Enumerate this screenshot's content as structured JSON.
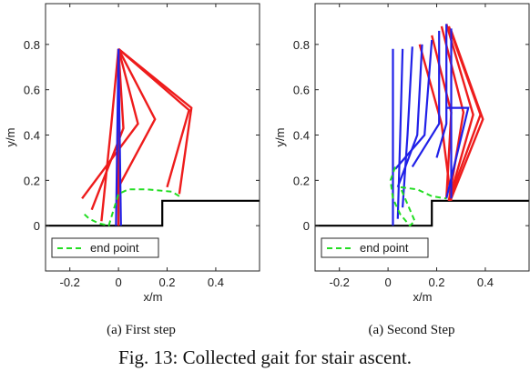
{
  "colors": {
    "red": "#ee1c1c",
    "blue": "#2020e8",
    "green": "#22dd22",
    "stair": "#000000"
  },
  "figure_caption": "Fig. 13: Collected gait for stair ascent.",
  "chart_data": [
    {
      "type": "line",
      "caption": "(a) First step",
      "xlabel": "x/m",
      "ylabel": "y/m",
      "xlim": [
        -0.3,
        0.58
      ],
      "ylim": [
        -0.2,
        0.98
      ],
      "xticks": [
        -0.2,
        0,
        0.2,
        0.4
      ],
      "xtick_labels": [
        "-0.2",
        "0",
        "0.2",
        "0.4"
      ],
      "yticks": [
        0,
        0.2,
        0.4,
        0.6,
        0.8
      ],
      "ytick_labels": [
        "0",
        "0.2",
        "0.4",
        "0.6",
        "0.8"
      ],
      "legend": {
        "label": "end point",
        "placement": "bottom-left"
      },
      "stair": [
        [
          -0.3,
          0
        ],
        [
          0.18,
          0
        ],
        [
          0.18,
          0.11
        ],
        [
          0.58,
          0.11
        ]
      ],
      "hip": [
        0,
        0.78
      ],
      "red_legs": [
        [
          [
            0.0,
            0.78
          ],
          [
            0.0,
            0.45
          ],
          [
            0.0,
            0.0
          ]
        ],
        [
          [
            0.0,
            0.78
          ],
          [
            -0.03,
            0.44
          ],
          [
            -0.07,
            0.02
          ]
        ],
        [
          [
            0.0,
            0.78
          ],
          [
            0.02,
            0.43
          ],
          [
            -0.11,
            0.07
          ]
        ],
        [
          [
            0.0,
            0.78
          ],
          [
            0.08,
            0.45
          ],
          [
            -0.15,
            0.12
          ]
        ],
        [
          [
            0.0,
            0.78
          ],
          [
            0.15,
            0.47
          ],
          [
            0.0,
            0.17
          ]
        ],
        [
          [
            0.0,
            0.78
          ],
          [
            0.29,
            0.51
          ],
          [
            0.2,
            0.17
          ]
        ],
        [
          [
            0.0,
            0.78
          ],
          [
            0.3,
            0.52
          ],
          [
            0.25,
            0.14
          ]
        ]
      ],
      "blue_legs": [
        [
          [
            0.0,
            0.78
          ],
          [
            -0.005,
            0.4
          ],
          [
            -0.01,
            0.0
          ]
        ],
        [
          [
            0.0,
            0.78
          ],
          [
            0.005,
            0.4
          ],
          [
            0.01,
            0.0
          ]
        ]
      ],
      "endpoint_path": [
        [
          -0.14,
          0.05
        ],
        [
          -0.12,
          0.03
        ],
        [
          -0.08,
          0.01
        ],
        [
          -0.04,
          0.0
        ],
        [
          0.0,
          0.14
        ],
        [
          0.04,
          0.16
        ],
        [
          0.12,
          0.16
        ],
        [
          0.22,
          0.15
        ],
        [
          0.25,
          0.13
        ]
      ]
    },
    {
      "type": "line",
      "caption": "(a) Second Step",
      "xlabel": "x/m",
      "ylabel": "y/m",
      "xlim": [
        -0.3,
        0.58
      ],
      "ylim": [
        -0.2,
        0.98
      ],
      "xticks": [
        -0.2,
        0,
        0.2,
        0.4
      ],
      "xtick_labels": [
        "-0.2",
        "0",
        "0.2",
        "0.4"
      ],
      "yticks": [
        0,
        0.2,
        0.4,
        0.6,
        0.8
      ],
      "ytick_labels": [
        "0",
        "0.2",
        "0.4",
        "0.6",
        "0.8"
      ],
      "legend": {
        "label": "end point",
        "placement": "bottom-left"
      },
      "stair": [
        [
          -0.3,
          0
        ],
        [
          0.18,
          0
        ],
        [
          0.18,
          0.11
        ],
        [
          0.58,
          0.11
        ]
      ],
      "red_legs": [
        [
          [
            0.13,
            0.8
          ],
          [
            0.22,
            0.45
          ],
          [
            0.26,
            0.11
          ]
        ],
        [
          [
            0.18,
            0.84
          ],
          [
            0.26,
            0.5
          ],
          [
            0.24,
            0.12
          ]
        ],
        [
          [
            0.22,
            0.88
          ],
          [
            0.31,
            0.5
          ],
          [
            0.25,
            0.11
          ]
        ],
        [
          [
            0.24,
            0.89
          ],
          [
            0.35,
            0.49
          ],
          [
            0.25,
            0.11
          ]
        ],
        [
          [
            0.25,
            0.88
          ],
          [
            0.38,
            0.49
          ],
          [
            0.25,
            0.11
          ]
        ],
        [
          [
            0.26,
            0.86
          ],
          [
            0.39,
            0.47
          ],
          [
            0.26,
            0.12
          ]
        ]
      ],
      "blue_legs": [
        [
          [
            0.02,
            0.78
          ],
          [
            0.02,
            0.4
          ],
          [
            0.02,
            0.0
          ]
        ],
        [
          [
            0.06,
            0.78
          ],
          [
            0.05,
            0.4
          ],
          [
            0.04,
            0.03
          ]
        ],
        [
          [
            0.1,
            0.79
          ],
          [
            0.08,
            0.4
          ],
          [
            0.06,
            0.08
          ]
        ],
        [
          [
            0.14,
            0.8
          ],
          [
            0.12,
            0.4
          ],
          [
            0.04,
            0.17
          ]
        ],
        [
          [
            0.18,
            0.82
          ],
          [
            0.15,
            0.4
          ],
          [
            0.03,
            0.25
          ]
        ],
        [
          [
            0.21,
            0.86
          ],
          [
            0.21,
            0.45
          ],
          [
            0.1,
            0.26
          ]
        ],
        [
          [
            0.24,
            0.89
          ],
          [
            0.24,
            0.45
          ],
          [
            0.2,
            0.3
          ]
        ],
        [
          [
            0.26,
            0.87
          ],
          [
            0.26,
            0.48
          ],
          [
            0.26,
            0.12
          ]
        ],
        [
          [
            0.24,
            0.52
          ],
          [
            0.33,
            0.52
          ],
          [
            0.24,
            0.12
          ]
        ]
      ],
      "endpoint_path": [
        [
          0.03,
          0.26
        ],
        [
          0.01,
          0.2
        ],
        [
          0.02,
          0.12
        ],
        [
          0.05,
          0.05
        ],
        [
          0.09,
          0.0
        ],
        [
          0.11,
          0.02
        ],
        [
          0.05,
          0.17
        ],
        [
          0.12,
          0.16
        ],
        [
          0.18,
          0.13
        ],
        [
          0.24,
          0.12
        ]
      ]
    }
  ]
}
